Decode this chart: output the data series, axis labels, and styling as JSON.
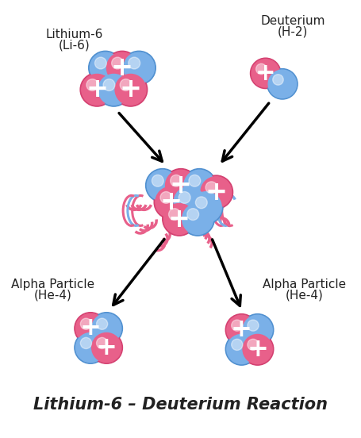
{
  "title": "Lithium-6 – Deuterium Reaction",
  "title_fontsize": 15,
  "title_fontweight": "bold",
  "background_color": "#ffffff",
  "proton_color": "#e8608a",
  "neutron_color": "#7ab0e8",
  "proton_color_dark": "#d44070",
  "neutron_color_dark": "#5090d0",
  "plus_color": "#ffffff",
  "labels": {
    "li6_line1": "Lithium-6",
    "li6_line2": "(Li-6)",
    "deut_line1": "Deuterium",
    "deut_line2": "(H-2)",
    "alpha1_line1": "Alpha Particle",
    "alpha1_line2": "(He-4)",
    "alpha2_line1": "Alpha Particle",
    "alpha2_line2": "(He-4)"
  },
  "label_fontsize": 11,
  "label_color": "#222222"
}
